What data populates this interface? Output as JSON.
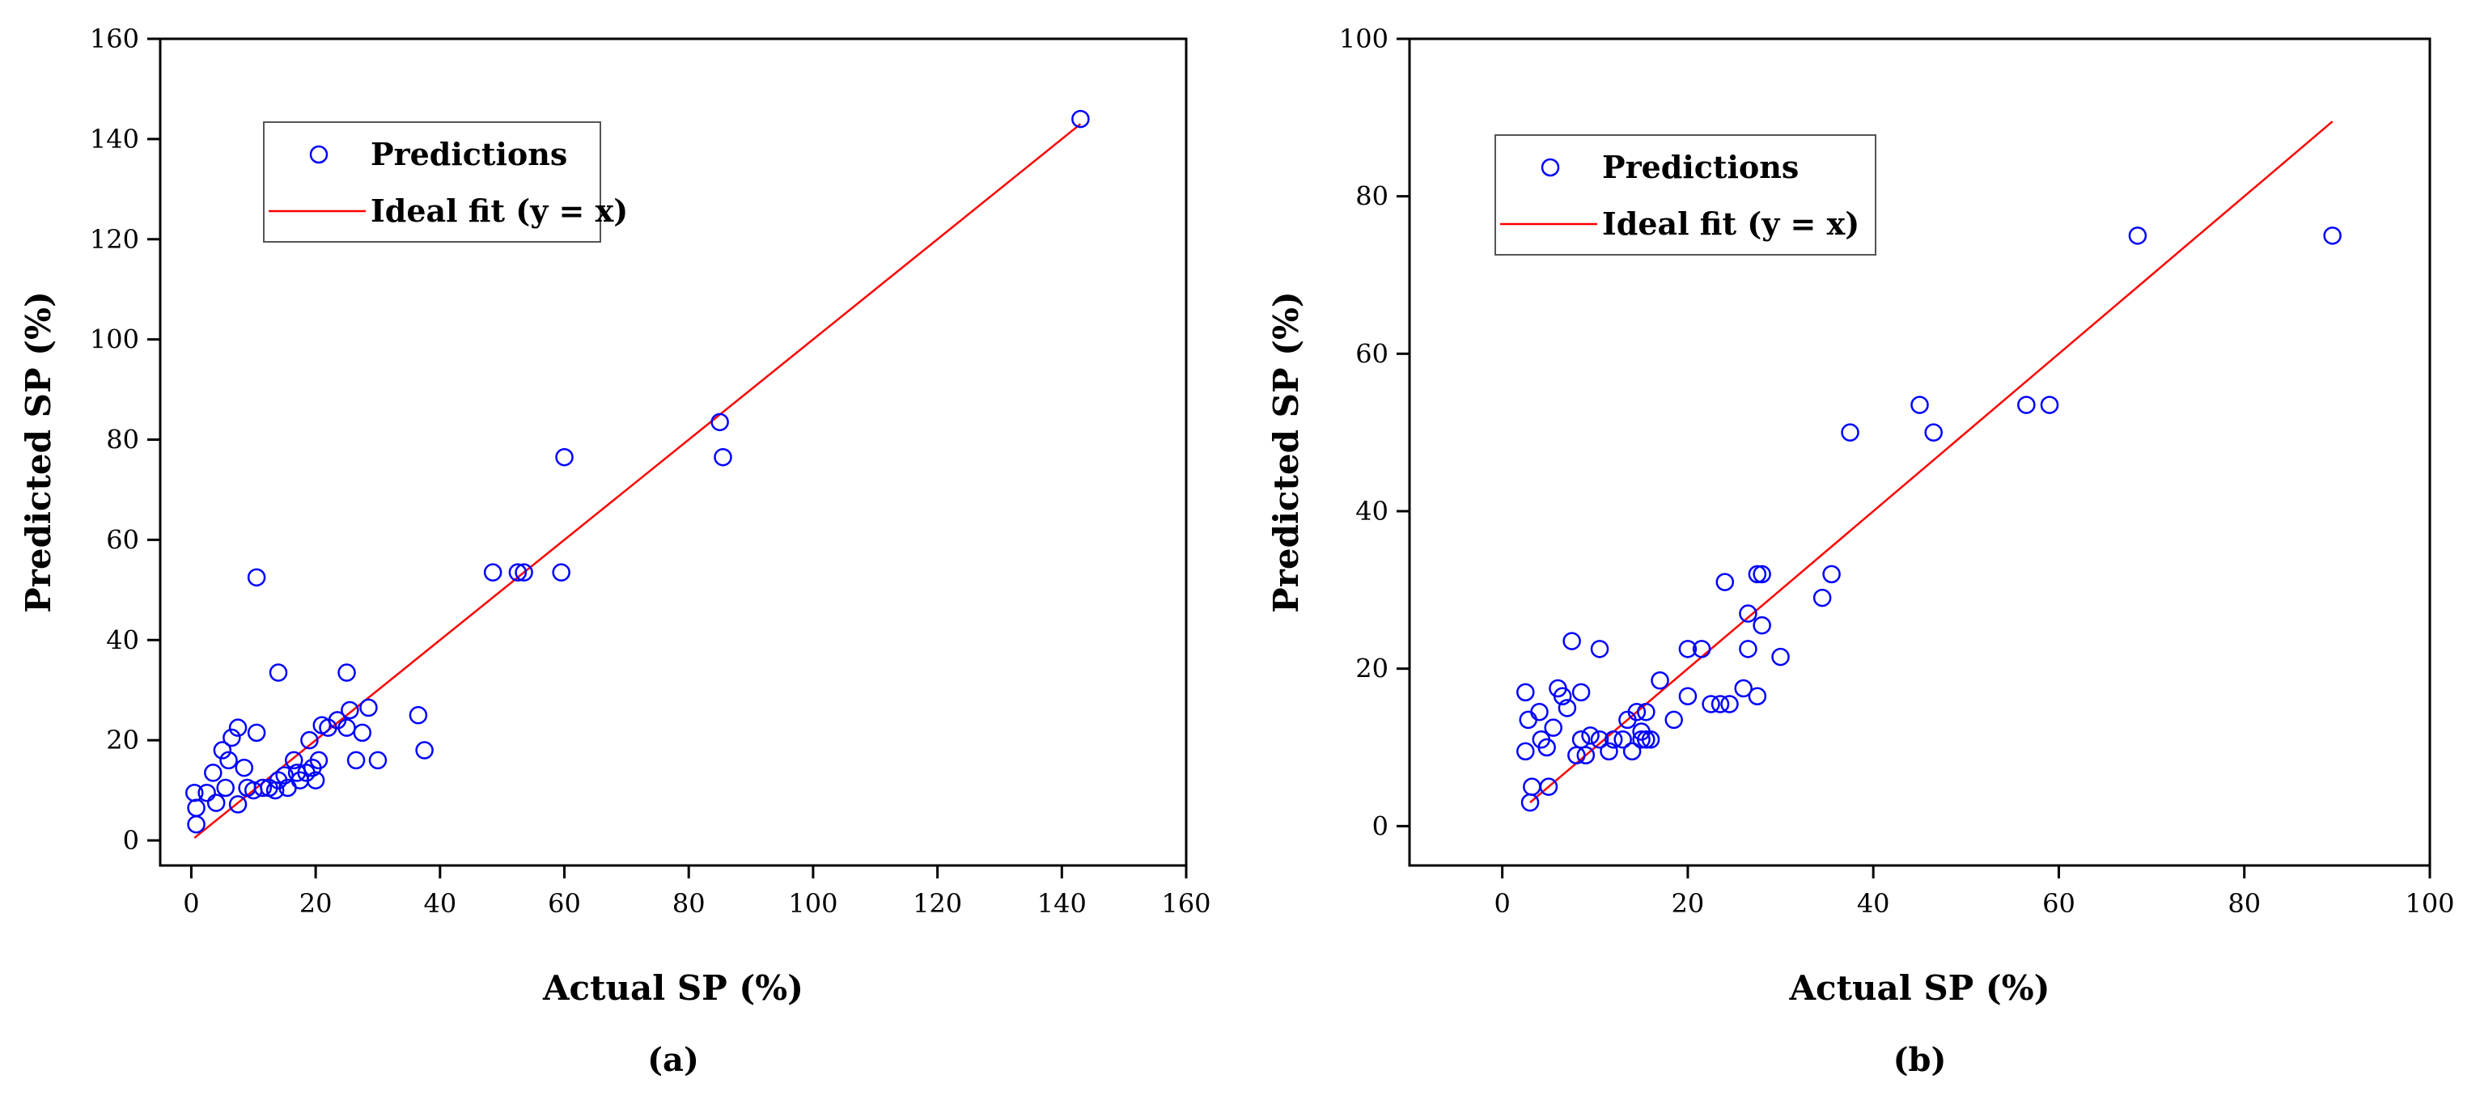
{
  "chart_data": [
    {
      "type": "scatter",
      "panel_label": "(a)",
      "xlabel": "Actual SP (%)",
      "ylabel": "Predicted SP (%)",
      "xlim": [
        -5,
        160
      ],
      "ylim": [
        -5,
        160
      ],
      "xticks": [
        0,
        20,
        40,
        60,
        80,
        100,
        120,
        140,
        160
      ],
      "yticks": [
        0,
        20,
        40,
        60,
        80,
        100,
        120,
        140,
        160
      ],
      "legend": {
        "position": "top-left",
        "entries": [
          "Predictions",
          "Ideal fit (y = x)"
        ]
      },
      "series": [
        {
          "name": "Predictions",
          "marker": "open-circle",
          "color": "#0000FF",
          "points": [
            [
              0.5,
              9.5
            ],
            [
              0.8,
              6.5
            ],
            [
              0.8,
              3.2
            ],
            [
              2.5,
              9.5
            ],
            [
              3.5,
              13.5
            ],
            [
              4,
              7.5
            ],
            [
              5,
              18
            ],
            [
              5.5,
              10.5
            ],
            [
              6,
              16
            ],
            [
              6.5,
              20.5
            ],
            [
              7.5,
              22.5
            ],
            [
              7.5,
              7.2
            ],
            [
              8.5,
              14.5
            ],
            [
              9,
              10.5
            ],
            [
              10,
              10
            ],
            [
              10.5,
              21.5
            ],
            [
              10.5,
              52.5
            ],
            [
              11.5,
              10.5
            ],
            [
              12.5,
              10.5
            ],
            [
              13.5,
              10
            ],
            [
              14,
              12
            ],
            [
              14,
              33.5
            ],
            [
              15,
              13
            ],
            [
              15.5,
              10.5
            ],
            [
              16.5,
              16
            ],
            [
              17,
              13.5
            ],
            [
              17.5,
              12
            ],
            [
              18.5,
              13.5
            ],
            [
              19,
              20
            ],
            [
              19.5,
              14.5
            ],
            [
              20,
              12
            ],
            [
              20.5,
              16
            ],
            [
              21,
              23
            ],
            [
              22,
              22.5
            ],
            [
              23.5,
              24
            ],
            [
              25,
              33.5
            ],
            [
              25,
              22.5
            ],
            [
              25.5,
              26
            ],
            [
              26.5,
              16
            ],
            [
              27.5,
              21.5
            ],
            [
              28.5,
              26.5
            ],
            [
              30,
              16
            ],
            [
              36.5,
              25
            ],
            [
              37.5,
              18
            ],
            [
              48.5,
              53.5
            ],
            [
              52.5,
              53.5
            ],
            [
              53.5,
              53.5
            ],
            [
              59.5,
              53.5
            ],
            [
              60,
              76.5
            ],
            [
              85,
              83.5
            ],
            [
              85.5,
              76.5
            ],
            [
              143,
              144
            ]
          ]
        },
        {
          "name": "Ideal fit (y = x)",
          "type": "line",
          "color": "#FF0000",
          "x": [
            0.5,
            143
          ],
          "y": [
            0.5,
            143
          ]
        }
      ]
    },
    {
      "type": "scatter",
      "panel_label": "(b)",
      "xlabel": "Actual SP (%)",
      "ylabel": "Predicted SP (%)",
      "xlim": [
        -10,
        100
      ],
      "ylim": [
        -5,
        100
      ],
      "xticks": [
        0,
        20,
        40,
        60,
        80,
        100
      ],
      "yticks": [
        0,
        20,
        40,
        60,
        80,
        100
      ],
      "legend": {
        "position": "top-left",
        "entries": [
          "Predictions",
          "Ideal fit (y = x)"
        ]
      },
      "series": [
        {
          "name": "Predictions",
          "marker": "open-circle",
          "color": "#0000FF",
          "points": [
            [
              2.5,
              17
            ],
            [
              2.5,
              9.5
            ],
            [
              2.8,
              13.5
            ],
            [
              3,
              3
            ],
            [
              3.2,
              5
            ],
            [
              4,
              14.5
            ],
            [
              4.2,
              11
            ],
            [
              4.8,
              10
            ],
            [
              5,
              5
            ],
            [
              5.5,
              12.5
            ],
            [
              6,
              17.5
            ],
            [
              6.5,
              16.5
            ],
            [
              7,
              15
            ],
            [
              7.5,
              23.5
            ],
            [
              8,
              9
            ],
            [
              8.5,
              17
            ],
            [
              8.5,
              11
            ],
            [
              9,
              9
            ],
            [
              9.5,
              11.5
            ],
            [
              10.5,
              11
            ],
            [
              10.5,
              22.5
            ],
            [
              11.5,
              9.5
            ],
            [
              12,
              11
            ],
            [
              13,
              11
            ],
            [
              13.5,
              13.5
            ],
            [
              14,
              9.5
            ],
            [
              14.5,
              14.5
            ],
            [
              15,
              12
            ],
            [
              15,
              11
            ],
            [
              15.5,
              14.5
            ],
            [
              15.5,
              11
            ],
            [
              16,
              11
            ],
            [
              17,
              18.5
            ],
            [
              18.5,
              13.5
            ],
            [
              20,
              22.5
            ],
            [
              20,
              16.5
            ],
            [
              21.5,
              22.5
            ],
            [
              22.5,
              15.5
            ],
            [
              23.5,
              15.5
            ],
            [
              24,
              31
            ],
            [
              24.5,
              15.5
            ],
            [
              26,
              17.5
            ],
            [
              26.5,
              22.5
            ],
            [
              26.5,
              27
            ],
            [
              27.5,
              16.5
            ],
            [
              27.5,
              32
            ],
            [
              28,
              25.5
            ],
            [
              28,
              32
            ],
            [
              30,
              21.5
            ],
            [
              34.5,
              29
            ],
            [
              35.5,
              32
            ],
            [
              37.5,
              50
            ],
            [
              45,
              53.5
            ],
            [
              46.5,
              50
            ],
            [
              56.5,
              53.5
            ],
            [
              59,
              53.5
            ],
            [
              68.5,
              75
            ],
            [
              89.5,
              75
            ]
          ]
        },
        {
          "name": "Ideal fit (y = x)",
          "type": "line",
          "color": "#FF0000",
          "x": [
            3,
            89.5
          ],
          "y": [
            3,
            89.5
          ]
        }
      ]
    }
  ]
}
